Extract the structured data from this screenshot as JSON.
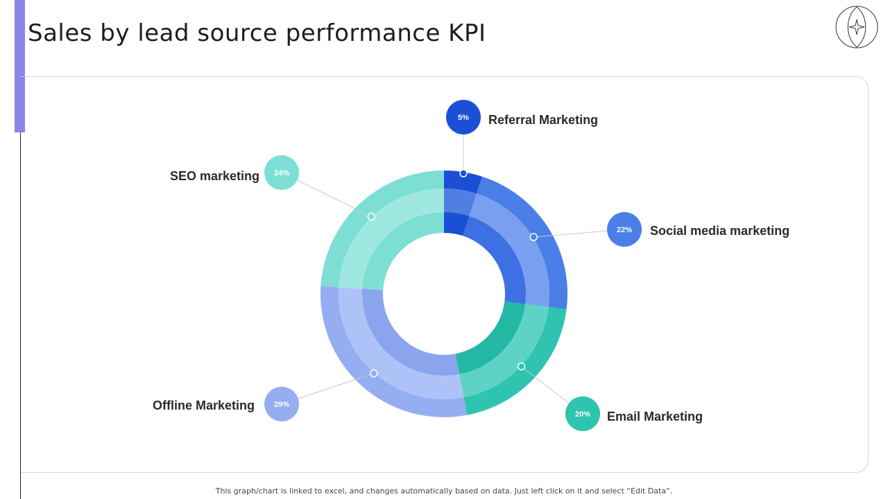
{
  "page": {
    "title": "Sales by lead source performance KPI",
    "footnote": "This graph/chart is linked to excel,  and changes automatically based on data. Just left click on it and select “Edit Data”."
  },
  "colors": {
    "accent": "#8b85e8"
  },
  "icons": {
    "logo": "star-eye-logo-icon"
  },
  "chart_data": {
    "type": "donut",
    "title": "",
    "series": [
      {
        "name": "Referral Marketing",
        "value": 5,
        "label": "5%",
        "colors": [
          "#1a4fd6",
          "#4f7fe0",
          "#1a4fd6"
        ]
      },
      {
        "name": "Social media marketing",
        "value": 22,
        "label": "22%",
        "colors": [
          "#4a7fe8",
          "#7a9ff0",
          "#3d70e3"
        ]
      },
      {
        "name": "Email Marketing",
        "value": 20,
        "label": "20%",
        "colors": [
          "#2ec4b0",
          "#5ed3c5",
          "#22b8a4"
        ]
      },
      {
        "name": "Offline Marketing",
        "value": 29,
        "label": "29%",
        "colors": [
          "#94aef1",
          "#adc2f6",
          "#8aa5ee"
        ]
      },
      {
        "name": "SEO marketing",
        "value": 24,
        "label": "24%",
        "colors": [
          "#7ddfd4",
          "#9fe8e0",
          "#7ddfd4"
        ]
      }
    ]
  }
}
